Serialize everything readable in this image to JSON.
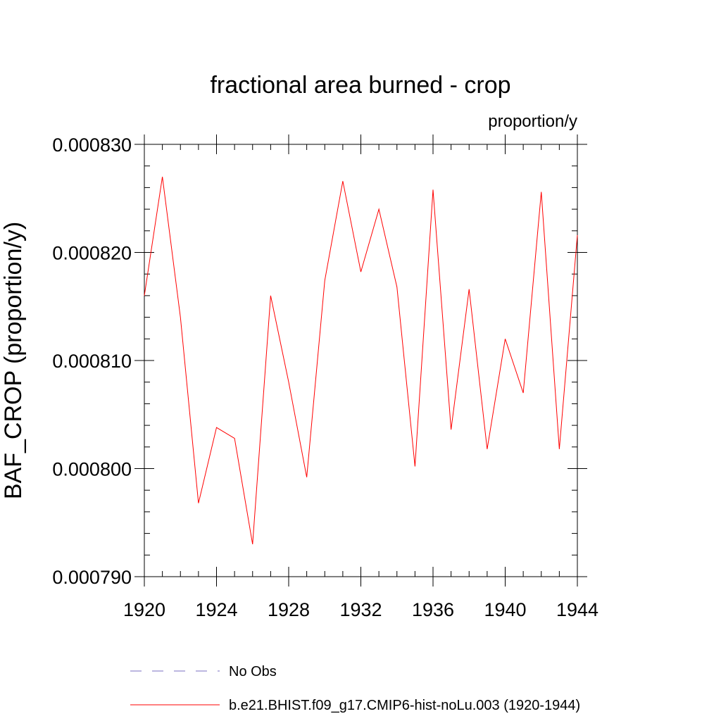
{
  "chart_data": {
    "type": "line",
    "title": "fractional area burned - crop",
    "units_label": "proportion/y",
    "ylabel": "BAF_CROP  (proportion/y)",
    "xlabel": "",
    "xlim": [
      1920,
      1944
    ],
    "ylim": [
      0.00079,
      0.00083
    ],
    "x_ticks": [
      1920,
      1924,
      1928,
      1932,
      1936,
      1940,
      1944
    ],
    "x_tick_labels": [
      "1920",
      "1924",
      "1928",
      "1932",
      "1936",
      "1940",
      "1944"
    ],
    "y_ticks": [
      0.00079,
      0.0008,
      0.00081,
      0.00082,
      0.00083
    ],
    "y_tick_labels": [
      "0.000790",
      "0.000800",
      "0.000810",
      "0.000820",
      "0.000830"
    ],
    "grid": false,
    "legend_position": "bottom",
    "series": [
      {
        "name": "b.e21.BHIST.f09_g17.CMIP6-hist-noLu.003 (1920-1944)",
        "color": "#ff0000",
        "style": "solid",
        "x": [
          1920,
          1921,
          1922,
          1923,
          1924,
          1925,
          1926,
          1927,
          1928,
          1929,
          1930,
          1931,
          1932,
          1933,
          1934,
          1935,
          1936,
          1937,
          1938,
          1939,
          1940,
          1941,
          1942,
          1943,
          1944
        ],
        "y": [
          0.000816,
          0.000827,
          0.000814,
          0.0007968,
          0.0008038,
          0.0008028,
          0.000793,
          0.000816,
          0.000808,
          0.0007992,
          0.0008174,
          0.0008266,
          0.0008182,
          0.000824,
          0.0008168,
          0.0008002,
          0.0008258,
          0.0008036,
          0.0008166,
          0.0008018,
          0.000812,
          0.000807,
          0.0008256,
          0.0008018,
          0.0008216
        ]
      }
    ],
    "legend": [
      {
        "label": "No Obs",
        "color": "#7a6fc0",
        "style": "dashed"
      },
      {
        "label": "b.e21.BHIST.f09_g17.CMIP6-hist-noLu.003 (1920-1944)",
        "color": "#ff0000",
        "style": "solid"
      }
    ]
  }
}
